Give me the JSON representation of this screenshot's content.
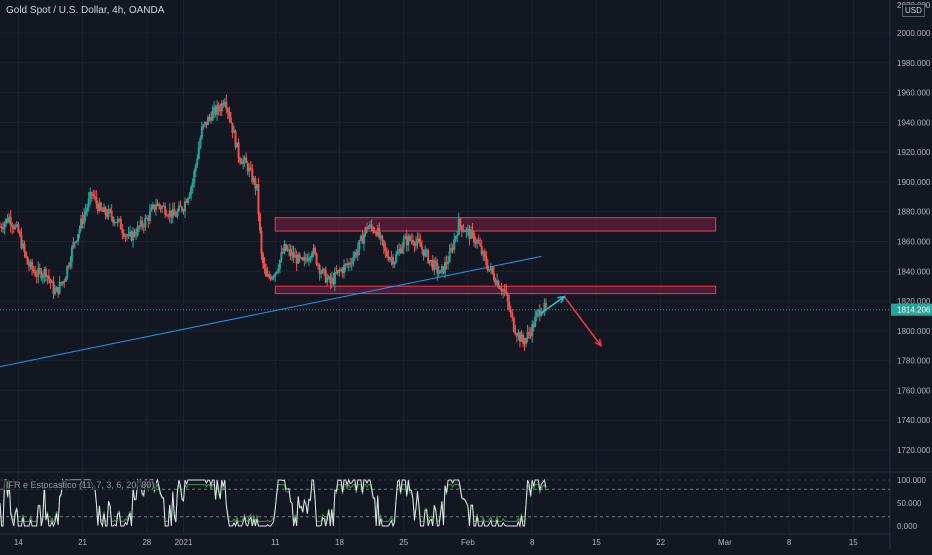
{
  "header": {
    "title": "Gold Spot / U.S. Dollar, 4h, OANDA",
    "currency": "USD"
  },
  "indicator": {
    "label": "IFR e Estocastico (11, 7, 3, 6, 20, 80)",
    "ticks": [
      "100.000",
      "50.000",
      "0.000"
    ],
    "tick_values": [
      100,
      50,
      0
    ],
    "levels": [
      80,
      20
    ]
  },
  "price_axis": {
    "top_partial": "2020.000",
    "ticks": [
      "2000.000",
      "1980.000",
      "1960.000",
      "1940.000",
      "1920.000",
      "1900.000",
      "1880.000",
      "1860.000",
      "1840.000",
      "1820.000",
      "1800.000",
      "1780.000",
      "1760.000",
      "1740.000",
      "1720.000"
    ],
    "tick_values": [
      2000,
      1980,
      1960,
      1940,
      1920,
      1900,
      1880,
      1860,
      1840,
      1820,
      1800,
      1780,
      1760,
      1740,
      1720
    ],
    "current_label": "1814.206",
    "current_value": 1814.206
  },
  "time_axis": {
    "ticks": [
      "14",
      "21",
      "28",
      "2021",
      "11",
      "18",
      "25",
      "Feb",
      "8",
      "15",
      "22",
      "Mar",
      "8",
      "15"
    ],
    "tick_days": [
      -18,
      -11,
      -4,
      0,
      10,
      17,
      24,
      31,
      38,
      45,
      52,
      59,
      66,
      73
    ]
  },
  "colors": {
    "background": "#131722",
    "up": "#26a69a",
    "down": "#ef5350",
    "zone_fill": "#7b1f45",
    "zone_border": "#f23645",
    "trendline": "#2196f3",
    "arrow_up": "#26c6da",
    "arrow_down": "#f23645",
    "current_price": "#26a69a"
  },
  "chart_data": {
    "type": "candlestick",
    "symbol": "XAUUSD",
    "timeframe": "4h",
    "ylim": [
      1710,
      2020
    ],
    "xlim_days": [
      -20,
      77
    ],
    "price_path": [
      [
        -20,
        1870
      ],
      [
        -19,
        1876
      ],
      [
        -18,
        1866
      ],
      [
        -17,
        1845
      ],
      [
        -16,
        1838
      ],
      [
        -15,
        1840
      ],
      [
        -14,
        1825
      ],
      [
        -13,
        1835
      ],
      [
        -12,
        1858
      ],
      [
        -11,
        1875
      ],
      [
        -10,
        1892
      ],
      [
        -9,
        1880
      ],
      [
        -8,
        1878
      ],
      [
        -7,
        1872
      ],
      [
        -6,
        1862
      ],
      [
        -5,
        1868
      ],
      [
        -4,
        1875
      ],
      [
        -3,
        1885
      ],
      [
        -2,
        1882
      ],
      [
        -1,
        1877
      ],
      [
        0,
        1884
      ],
      [
        1,
        1900
      ],
      [
        2,
        1935
      ],
      [
        3,
        1945
      ],
      [
        4,
        1950
      ],
      [
        4.5,
        1957
      ],
      [
        5,
        1945
      ],
      [
        6,
        1918
      ],
      [
        7,
        1910
      ],
      [
        8,
        1895
      ],
      [
        8.5,
        1850
      ],
      [
        9,
        1835
      ],
      [
        10,
        1840
      ],
      [
        11,
        1855
      ],
      [
        12,
        1850
      ],
      [
        13,
        1845
      ],
      [
        14,
        1855
      ],
      [
        15,
        1840
      ],
      [
        16,
        1832
      ],
      [
        17,
        1840
      ],
      [
        18,
        1845
      ],
      [
        19,
        1855
      ],
      [
        20,
        1870
      ],
      [
        21,
        1868
      ],
      [
        22,
        1852
      ],
      [
        23,
        1848
      ],
      [
        24,
        1860
      ],
      [
        25,
        1862
      ],
      [
        26,
        1855
      ],
      [
        27,
        1846
      ],
      [
        28,
        1838
      ],
      [
        29,
        1850
      ],
      [
        30,
        1872
      ],
      [
        31,
        1866
      ],
      [
        32,
        1860
      ],
      [
        33,
        1845
      ],
      [
        34,
        1835
      ],
      [
        35,
        1826
      ],
      [
        36,
        1803
      ],
      [
        37,
        1792
      ],
      [
        38,
        1802
      ],
      [
        38.5,
        1810
      ],
      [
        39,
        1816
      ],
      [
        39.5,
        1814
      ]
    ],
    "zones": [
      {
        "from": 10,
        "to": 58,
        "low": 1867,
        "high": 1876
      },
      {
        "from": 10,
        "to": 58,
        "low": 1825,
        "high": 1830
      }
    ],
    "trendline": {
      "from": [
        -20,
        1776
      ],
      "to": [
        39,
        1850
      ]
    },
    "projection": [
      [
        39,
        1812
      ],
      [
        41.5,
        1823
      ],
      [
        45.5,
        1790
      ]
    ],
    "current_price": 1814.206,
    "indicator_series": {
      "range": [
        0,
        100
      ],
      "overbought": 80,
      "oversold": 20
    }
  }
}
